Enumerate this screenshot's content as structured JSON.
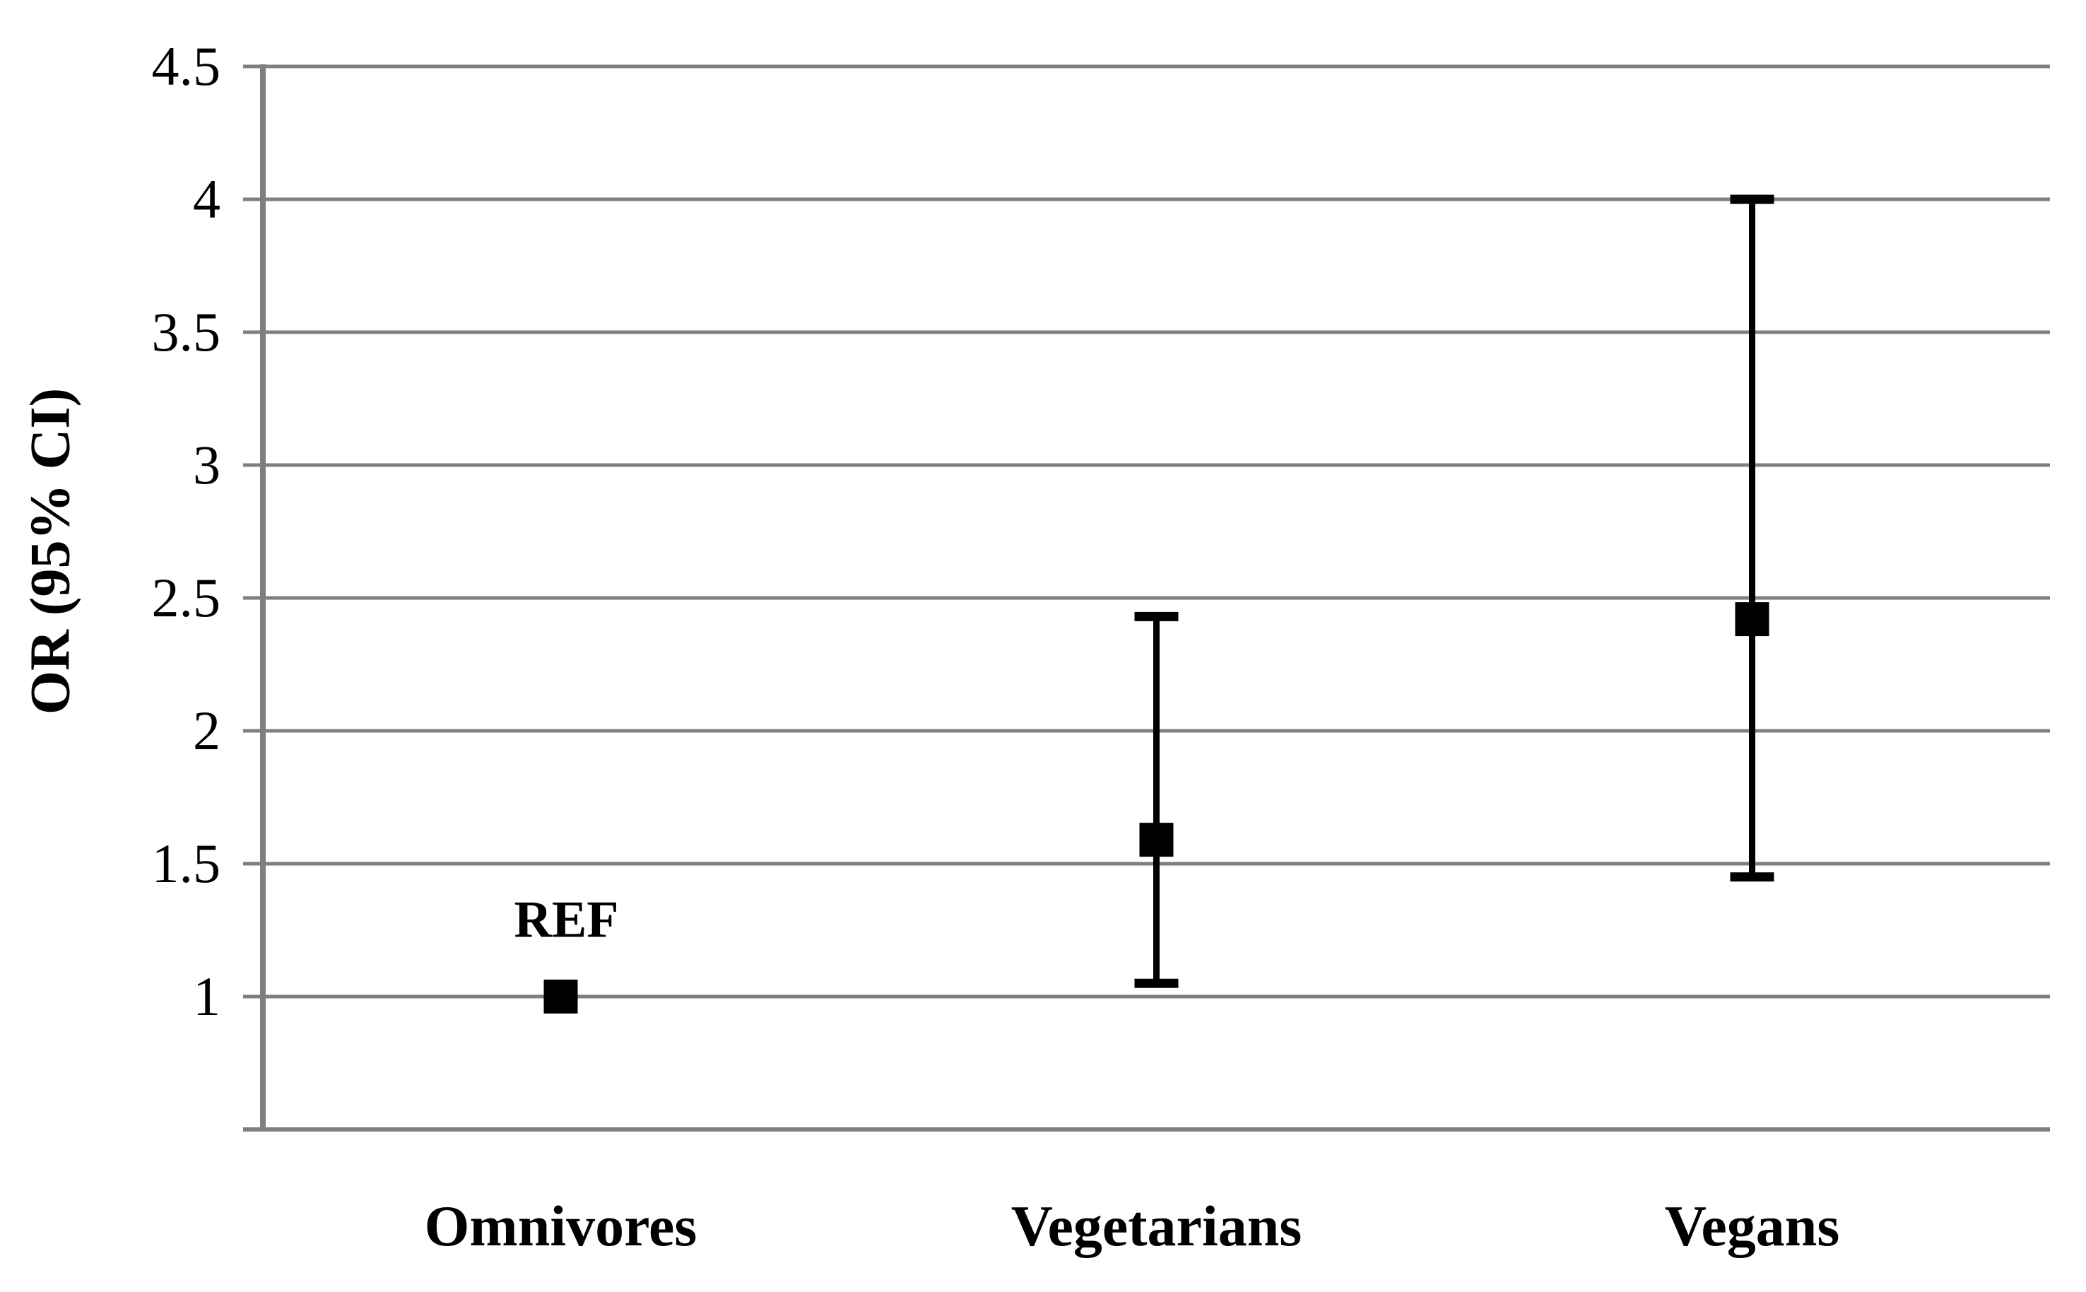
{
  "figure": {
    "background": "#ffffff",
    "colors": {
      "grid": "#7f7f7f",
      "axis": "#7f7f7f",
      "data": "#000000",
      "text": "#000000"
    }
  },
  "chart_data": {
    "type": "scatter",
    "subtype": "forest-plot-error-bars",
    "title": "",
    "xlabel": "",
    "ylabel": "OR (95% CI)",
    "categories": [
      "Omnivores",
      "Vegetarians",
      "Vegans"
    ],
    "series": [
      {
        "name": "OR (95% CI)",
        "marker": "black-square",
        "points": [
          {
            "category": "Omnivores",
            "or": 1.0,
            "ci_low": null,
            "ci_high": null,
            "annotation": "REF"
          },
          {
            "category": "Vegetarians",
            "or": 1.59,
            "ci_low": 1.05,
            "ci_high": 2.43,
            "annotation": ""
          },
          {
            "category": "Vegans",
            "or": 2.42,
            "ci_low": 1.45,
            "ci_high": 4.0,
            "annotation": ""
          }
        ]
      }
    ],
    "ylim": [
      0.5,
      4.5
    ],
    "y_ticks": [
      {
        "value": 4.5,
        "label": "4.5"
      },
      {
        "value": 4.0,
        "label": "4"
      },
      {
        "value": 3.5,
        "label": "3.5"
      },
      {
        "value": 3.0,
        "label": "3"
      },
      {
        "value": 2.5,
        "label": "2.5"
      },
      {
        "value": 2.0,
        "label": "2"
      },
      {
        "value": 1.5,
        "label": "1.5"
      },
      {
        "value": 1.0,
        "label": "1"
      }
    ],
    "grid": "horizontal",
    "legend": "none",
    "error_bars": "95% CI caps"
  }
}
